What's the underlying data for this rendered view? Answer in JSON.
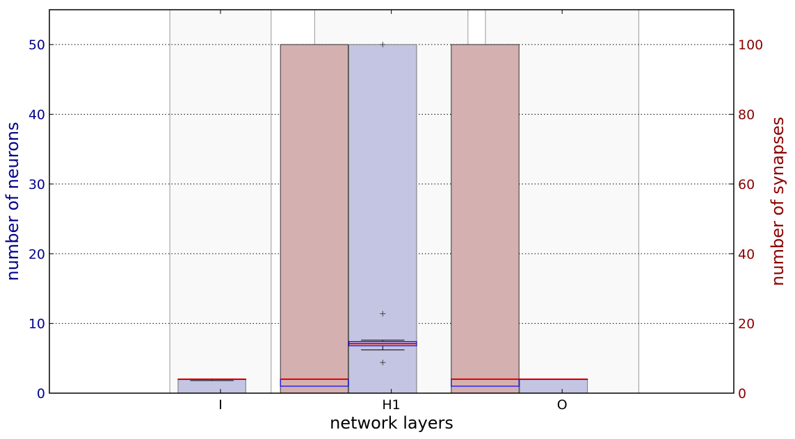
{
  "chart_data": {
    "type": "bar",
    "xlabel": "network layers",
    "ylabel": "number of neurons",
    "y2label": "number of synapses",
    "categories": [
      "I",
      "H1",
      "O"
    ],
    "ylim": [
      0,
      55
    ],
    "y2lim": [
      0,
      110
    ],
    "yticks": [
      0,
      10,
      20,
      30,
      40,
      50
    ],
    "y2ticks": [
      0,
      20,
      40,
      60,
      80,
      100
    ],
    "grid": "horizontal dotted",
    "colors": {
      "neurons_axis": "#00008b",
      "synapses_axis": "#8b0000",
      "neuron_bar": "#c4c5e2",
      "synapse_bar": "#d5b0b0",
      "layer_band": "#f9f9f9",
      "median_red": "#dd0000",
      "box_blue": "#0000ff"
    },
    "neuron_bars": [
      {
        "layer": "I",
        "value": 2
      },
      {
        "layer": "H1",
        "value": 50
      },
      {
        "layer": "O",
        "value": 2
      }
    ],
    "synapse_bars": [
      {
        "layer": "H1",
        "value": 100
      },
      {
        "layer": "O",
        "value": 100
      }
    ],
    "boxplots": [
      {
        "layer": "I",
        "series": "neurons",
        "q1": 2,
        "median": 2,
        "q3": 2,
        "whisker_low": 1.8,
        "whisker_high": 2,
        "outliers": []
      },
      {
        "layer": "H1",
        "series": "synapses",
        "q1": 2,
        "median": 4,
        "q3": 4,
        "whisker_low": 2,
        "whisker_high": 4,
        "outliers": []
      },
      {
        "layer": "H1",
        "series": "neurons",
        "q1": 6.8,
        "median": 7.1,
        "q3": 7.4,
        "whisker_low": 6.2,
        "whisker_high": 7.6,
        "outliers": [
          4.4,
          11.4,
          50
        ]
      },
      {
        "layer": "O",
        "series": "synapses",
        "q1": 2,
        "median": 4,
        "q3": 4,
        "whisker_low": 2,
        "whisker_high": 4,
        "outliers": []
      },
      {
        "layer": "O",
        "series": "neurons",
        "q1": 2,
        "median": 2,
        "q3": 2,
        "whisker_low": 2,
        "whisker_high": 2,
        "outliers": []
      }
    ]
  }
}
